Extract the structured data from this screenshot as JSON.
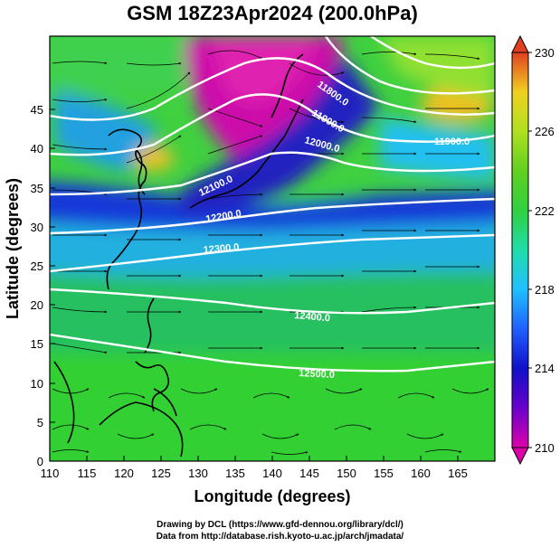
{
  "title": "GSM 18Z23Apr2024 (200.0hPa)",
  "xlabel": "Longitude (degrees)",
  "ylabel": "Latitude  (degrees)",
  "xticks": [
    "110",
    "115",
    "120",
    "125",
    "130",
    "135",
    "140",
    "145",
    "150",
    "155",
    "160",
    "165"
  ],
  "yticks": [
    "0",
    "5",
    "10",
    "15",
    "20",
    "25",
    "30",
    "35",
    "40",
    "45"
  ],
  "colorbar": {
    "ticks": [
      "230",
      "226",
      "222",
      "218",
      "214",
      "210"
    ],
    "range": [
      210,
      230
    ],
    "colors": [
      "#dd00aa",
      "#6a00cc",
      "#1010c8",
      "#2060ff",
      "#20c0ff",
      "#20ddaa",
      "#30d040",
      "#60d020",
      "#b0e020",
      "#f0d020",
      "#f09010",
      "#e04020"
    ]
  },
  "contour_labels": [
    "11800.0",
    "11900.0",
    "12000.0",
    "12100.0",
    "12200.0",
    "12300.0",
    "12400.0",
    "12500.0",
    "11900.0"
  ],
  "credits": {
    "line1": "Drawing by DCL (https://www.gfd-dennou.org/library/dcl/)",
    "line2": "Data from http://database.rish.kyoto-u.ac.jp/arch/jmadata/"
  },
  "map_data": {
    "lon_range": [
      110,
      170
    ],
    "lat_range": [
      0,
      50
    ],
    "field": "temperature (K) shaded, geopotential height contours, wind streamlines"
  }
}
